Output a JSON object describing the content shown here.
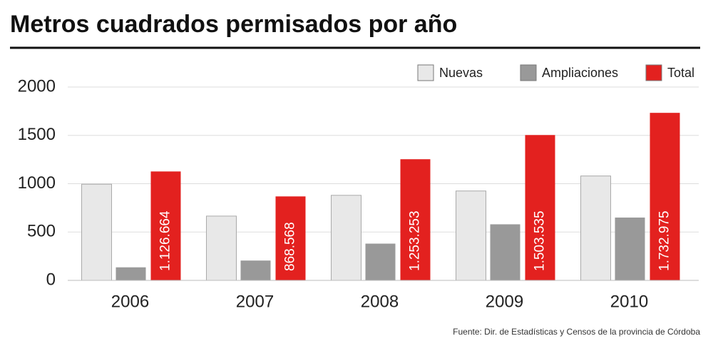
{
  "chart_data": {
    "type": "bar",
    "title": "Metros cuadrados permisados por año",
    "source": "Fuente: Dir. de Estadísticas y Censos de la provincia de Córdoba",
    "categories": [
      "2006",
      "2007",
      "2008",
      "2009",
      "2010"
    ],
    "series": [
      {
        "name": "Nuevas",
        "color": "#e8e8e8",
        "values": [
          995,
          665,
          880,
          925,
          1080
        ]
      },
      {
        "name": "Ampliaciones",
        "color": "#999999",
        "values": [
          135,
          205,
          380,
          580,
          650
        ]
      },
      {
        "name": "Total",
        "color": "#e3211f",
        "values": [
          1126.664,
          868.568,
          1253.253,
          1503.535,
          1732.975
        ],
        "value_labels": [
          "1.126.664",
          "868.568",
          "1.253.253",
          "1.503.535",
          "1.732.975"
        ]
      }
    ],
    "ylim": [
      0,
      2000
    ],
    "yticks": [
      0,
      500,
      1000,
      1500,
      2000
    ],
    "grid": true,
    "legend": "top-right"
  }
}
